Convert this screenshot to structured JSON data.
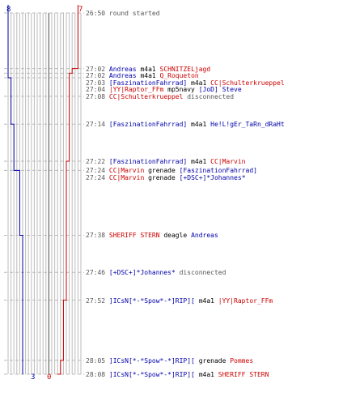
{
  "team_colors": {
    "blue": "#0000aa",
    "red": "#cc0000",
    "gray": "#555555"
  },
  "top_counts": {
    "blue": "8",
    "red": "7"
  },
  "bottom_counts": {
    "blue": "3",
    "red": "0"
  },
  "timeline": {
    "start_seconds": 1610,
    "end_seconds": 1688,
    "tick_count": 26
  },
  "events": [
    {
      "time": "26:50",
      "t": 1610,
      "parts": [
        {
          "text": "round started",
          "color": "#555555"
        }
      ]
    },
    {
      "time": "27:02",
      "t": 1622,
      "parts": [
        {
          "text": "Andreas",
          "color": "#0000aa"
        },
        {
          "text": " m4a1 ",
          "color": "#000000"
        },
        {
          "text": "SCHNITZELjagd",
          "color": "#cc0000"
        }
      ]
    },
    {
      "time": "27:02",
      "t": 1622,
      "parts": [
        {
          "text": "Andreas",
          "color": "#0000aa"
        },
        {
          "text": " m4a1 ",
          "color": "#000000"
        },
        {
          "text": "Q_Roqueton",
          "color": "#cc0000"
        }
      ]
    },
    {
      "time": "27:03",
      "t": 1623,
      "parts": [
        {
          "text": "[FaszinationFahrrad]",
          "color": "#0000aa"
        },
        {
          "text": " m4a1 ",
          "color": "#000000"
        },
        {
          "text": "CC|Schulterkrueppel",
          "color": "#cc0000"
        }
      ]
    },
    {
      "time": "27:04",
      "t": 1624,
      "parts": [
        {
          "text": "|YY|Raptor_FFm",
          "color": "#cc0000"
        },
        {
          "text": " mp5navy ",
          "color": "#000000"
        },
        {
          "text": "[JoD] Steve",
          "color": "#0000aa"
        }
      ]
    },
    {
      "time": "27:08",
      "t": 1628,
      "parts": [
        {
          "text": "CC|Schulterkrueppel",
          "color": "#cc0000"
        },
        {
          "text": " disconnected",
          "color": "#555555"
        }
      ]
    },
    {
      "time": "27:14",
      "t": 1634,
      "parts": [
        {
          "text": "[FaszinationFahrrad]",
          "color": "#0000aa"
        },
        {
          "text": " m4a1 ",
          "color": "#000000"
        },
        {
          "text": "He!L!gEr_TaRn_dRaHt",
          "color": "#0000aa"
        }
      ]
    },
    {
      "time": "27:22",
      "t": 1642,
      "parts": [
        {
          "text": "[FaszinationFahrrad]",
          "color": "#0000aa"
        },
        {
          "text": " m4a1 ",
          "color": "#000000"
        },
        {
          "text": "CC|Marvin",
          "color": "#cc0000"
        }
      ]
    },
    {
      "time": "27:24",
      "t": 1644,
      "parts": [
        {
          "text": "CC|Marvin",
          "color": "#cc0000"
        },
        {
          "text": " grenade ",
          "color": "#000000"
        },
        {
          "text": "[FaszinationFahrrad]",
          "color": "#0000aa"
        }
      ]
    },
    {
      "time": "27:24",
      "t": 1644,
      "parts": [
        {
          "text": "CC|Marvin",
          "color": "#cc0000"
        },
        {
          "text": " grenade ",
          "color": "#000000"
        },
        {
          "text": "[+DSC+]*Johannes*",
          "color": "#0000aa"
        }
      ]
    },
    {
      "time": "27:38",
      "t": 1658,
      "parts": [
        {
          "text": "SHERIFF STERN",
          "color": "#cc0000"
        },
        {
          "text": " deagle ",
          "color": "#000000"
        },
        {
          "text": "Andreas",
          "color": "#0000aa"
        }
      ]
    },
    {
      "time": "27:46",
      "t": 1666,
      "parts": [
        {
          "text": "[+DSC+]*Johannes*",
          "color": "#0000aa"
        },
        {
          "text": " disconnected",
          "color": "#555555"
        }
      ]
    },
    {
      "time": "27:52",
      "t": 1672,
      "parts": [
        {
          "text": "]ICsN[*-*Spow*-*]RIP][",
          "color": "#0000aa"
        },
        {
          "text": " m4a1 ",
          "color": "#000000"
        },
        {
          "text": "|YY|Raptor_FFm",
          "color": "#cc0000"
        }
      ]
    },
    {
      "time": "28:05",
      "t": 1685,
      "parts": [
        {
          "text": "]ICsN[*-*Spow*-*]RIP][",
          "color": "#0000aa"
        },
        {
          "text": " grenade ",
          "color": "#000000"
        },
        {
          "text": "Pommes",
          "color": "#cc0000"
        }
      ]
    },
    {
      "time": "28:08",
      "t": 1688,
      "parts": [
        {
          "text": "]ICsN[*-*Spow*-*]RIP][",
          "color": "#0000aa"
        },
        {
          "text": " m4a1 ",
          "color": "#000000"
        },
        {
          "text": "SHERIFF STERN",
          "color": "#cc0000"
        }
      ]
    }
  ],
  "chart_data": {
    "type": "line",
    "xlabel": "",
    "ylabel": "",
    "series": [
      {
        "team": "blue",
        "color": "#0000aa",
        "steps": [
          {
            "t": 1610,
            "alive": 8
          },
          {
            "t": 1624,
            "alive": 7
          },
          {
            "t": 1634,
            "alive": 6
          },
          {
            "t": 1644,
            "alive": 5
          },
          {
            "t": 1644,
            "alive": 4
          },
          {
            "t": 1658,
            "alive": 3
          },
          {
            "t": 1688,
            "alive": 3
          }
        ]
      },
      {
        "team": "red",
        "color": "#cc0000",
        "steps": [
          {
            "t": 1610,
            "alive": 7
          },
          {
            "t": 1622,
            "alive": 6
          },
          {
            "t": 1622,
            "alive": 5
          },
          {
            "t": 1623,
            "alive": 4
          },
          {
            "t": 1628,
            "alive": 4
          },
          {
            "t": 1642,
            "alive": 3
          },
          {
            "t": 1672,
            "alive": 2
          },
          {
            "t": 1685,
            "alive": 1
          },
          {
            "t": 1688,
            "alive": 0
          }
        ]
      }
    ]
  }
}
